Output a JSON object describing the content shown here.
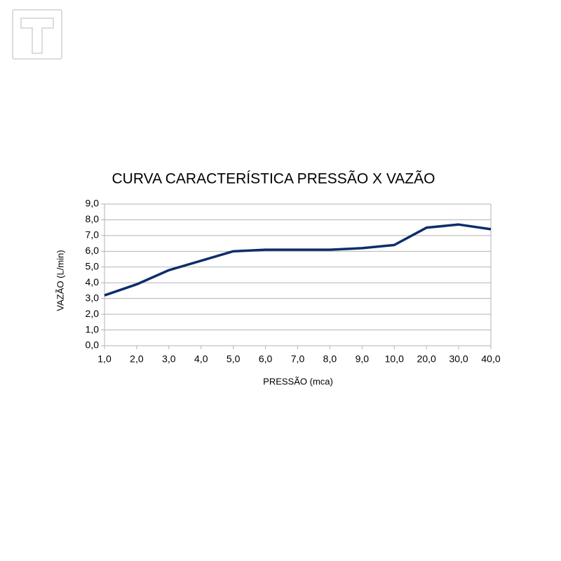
{
  "chart_data": {
    "type": "line",
    "title": "CURVA CARACTERÍSTICA PRESSÃO X VAZÃO",
    "x_label": "PRESSÃO (mca)",
    "y_label": "VAZÃO (L/min)",
    "categories": [
      "1,0",
      "2,0",
      "3,0",
      "4,0",
      "5,0",
      "6,0",
      "7,0",
      "8,0",
      "9,0",
      "10,0",
      "20,0",
      "30,0",
      "40,0"
    ],
    "series": [
      {
        "name": "VAZÃO",
        "color": "#0d2d6b",
        "values": [
          3.2,
          3.9,
          4.8,
          5.4,
          6.0,
          6.1,
          6.1,
          6.1,
          6.2,
          6.4,
          7.5,
          7.7,
          7.4
        ]
      }
    ],
    "ylim": [
      0,
      9
    ],
    "yticks": [
      {
        "value": 0,
        "label": "0,0"
      },
      {
        "value": 1,
        "label": "1,0"
      },
      {
        "value": 2,
        "label": "2,0"
      },
      {
        "value": 3,
        "label": "3,0"
      },
      {
        "value": 4,
        "label": "4,0"
      },
      {
        "value": 5,
        "label": "5,0"
      },
      {
        "value": 6,
        "label": "6,0"
      },
      {
        "value": 7,
        "label": "7,0"
      },
      {
        "value": 8,
        "label": "8,0"
      },
      {
        "value": 9,
        "label": "9,0"
      }
    ],
    "grid": true
  }
}
